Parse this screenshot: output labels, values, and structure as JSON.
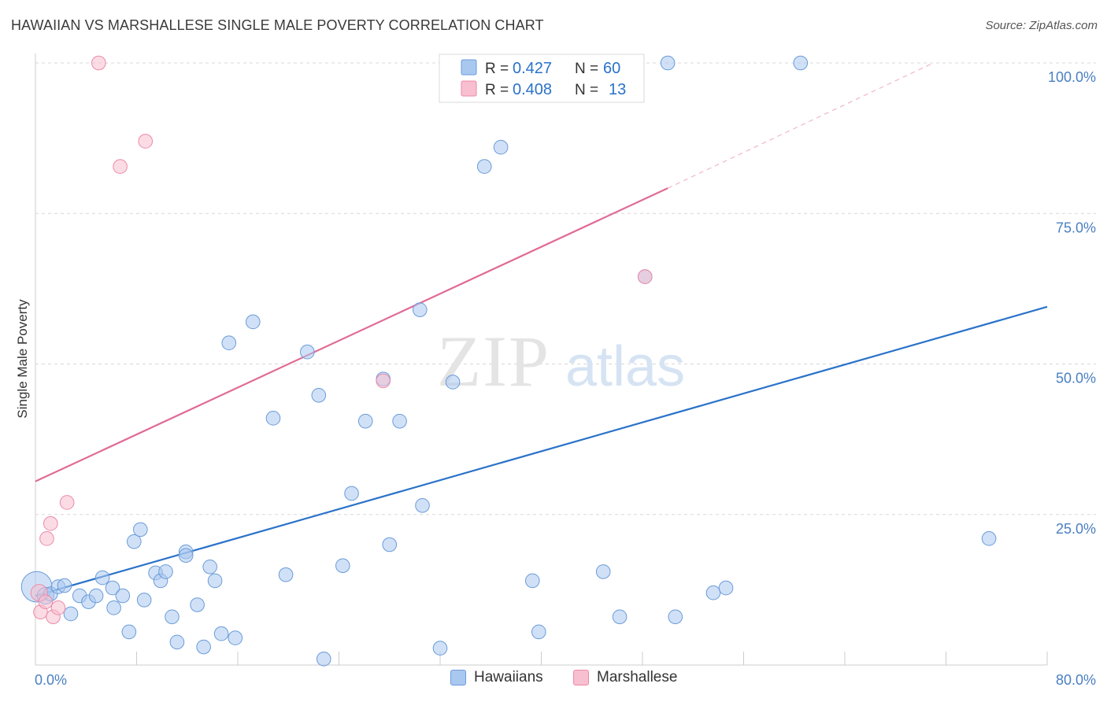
{
  "title": "HAWAIIAN VS MARSHALLESE SINGLE MALE POVERTY CORRELATION CHART",
  "source": "Source: ZipAtlas.com",
  "colors": {
    "blue_fill": "#a9c8f0",
    "blue_stroke": "#6b9bd8",
    "blue_line": "#2a72c9",
    "pink_fill": "#f8bfd0",
    "pink_stroke": "#ec8aa8",
    "pink_line": "#e06b96",
    "axis_label": "#4a7fc1",
    "grid": "#d8d8d8"
  },
  "legend": {
    "rows": [
      {
        "r_label": "R = ",
        "r_value": "0.427",
        "n_label": "N = ",
        "n_value": "60"
      },
      {
        "r_label": "R = ",
        "r_value": "0.408",
        "n_label": "N = ",
        "n_value": "13"
      }
    ]
  },
  "watermark": {
    "zip": "ZIP",
    "atlas": "atlas"
  },
  "chart_data": {
    "type": "scatter",
    "title": "HAWAIIAN VS MARSHALLESE SINGLE MALE POVERTY CORRELATION CHART",
    "xlabel": "",
    "ylabel": "Single Male Poverty",
    "xlim": [
      0,
      80
    ],
    "ylim": [
      0,
      105
    ],
    "x_tick_labels": [
      "0.0%",
      "80.0%"
    ],
    "y_ticks": [
      25,
      50,
      75,
      100
    ],
    "y_tick_labels": [
      "25.0%",
      "50.0%",
      "75.0%",
      "100.0%"
    ],
    "grid": true,
    "legend_position": "bottom",
    "series": [
      {
        "name": "Hawaiians",
        "r": 0.427,
        "n": 60,
        "trend": {
          "x0": 0,
          "y0": 11.5,
          "x1": 80,
          "y1": 59.5
        },
        "points": [
          [
            0.1,
            13.0,
            22
          ],
          [
            0.8,
            11.5,
            12
          ],
          [
            1.2,
            11.8,
            10
          ],
          [
            1.8,
            13.0,
            10
          ],
          [
            2.3,
            13.2,
            10
          ],
          [
            2.8,
            8.5,
            10
          ],
          [
            3.5,
            11.5,
            10
          ],
          [
            4.2,
            10.5,
            10
          ],
          [
            4.8,
            11.5,
            10
          ],
          [
            5.3,
            14.5,
            10
          ],
          [
            6.1,
            12.8,
            10
          ],
          [
            6.2,
            9.5,
            10
          ],
          [
            6.9,
            11.5,
            10
          ],
          [
            7.4,
            5.5,
            10
          ],
          [
            7.8,
            20.5,
            10
          ],
          [
            8.3,
            22.5,
            10
          ],
          [
            8.6,
            10.8,
            10
          ],
          [
            9.5,
            15.3,
            10
          ],
          [
            9.9,
            14.0,
            10
          ],
          [
            10.3,
            15.5,
            10
          ],
          [
            10.8,
            8.0,
            10
          ],
          [
            11.2,
            3.8,
            10
          ],
          [
            11.9,
            18.8,
            10
          ],
          [
            11.9,
            18.2,
            10
          ],
          [
            12.8,
            10.0,
            10
          ],
          [
            13.3,
            3.0,
            10
          ],
          [
            13.8,
            16.3,
            10
          ],
          [
            14.2,
            14.0,
            10
          ],
          [
            14.7,
            5.2,
            10
          ],
          [
            15.3,
            53.5,
            10
          ],
          [
            15.8,
            4.5,
            10
          ],
          [
            17.2,
            57.0,
            10
          ],
          [
            18.8,
            41.0,
            10
          ],
          [
            19.8,
            15.0,
            10
          ],
          [
            21.5,
            52.0,
            10
          ],
          [
            22.4,
            44.8,
            10
          ],
          [
            22.8,
            1.0,
            10
          ],
          [
            24.3,
            16.5,
            10
          ],
          [
            25.0,
            28.5,
            10
          ],
          [
            26.1,
            40.5,
            10
          ],
          [
            27.5,
            47.5,
            10
          ],
          [
            28.0,
            20.0,
            10
          ],
          [
            28.8,
            40.5,
            10
          ],
          [
            30.4,
            59.0,
            10
          ],
          [
            30.6,
            26.5,
            10
          ],
          [
            32.0,
            2.8,
            10
          ],
          [
            35.5,
            82.8,
            10
          ],
          [
            36.8,
            86.0,
            10
          ],
          [
            39.3,
            14.0,
            10
          ],
          [
            39.8,
            5.5,
            10
          ],
          [
            44.9,
            15.5,
            10
          ],
          [
            46.2,
            8.0,
            10
          ],
          [
            48.2,
            64.5,
            10
          ],
          [
            50.6,
            8.0,
            10
          ],
          [
            50.0,
            100.0,
            10
          ],
          [
            53.6,
            12.0,
            10
          ],
          [
            54.6,
            12.8,
            10
          ],
          [
            60.5,
            100.0,
            10
          ],
          [
            75.4,
            21.0,
            10
          ],
          [
            33.0,
            47.0,
            10
          ]
        ]
      },
      {
        "name": "Marshallese",
        "r": 0.408,
        "n": 13,
        "trend": {
          "x0": 0,
          "y0": 30.5,
          "x1": 50,
          "y1": 79.2,
          "dash_x1": 71,
          "dash_y1": 100
        },
        "points": [
          [
            0.3,
            12.0,
            12
          ],
          [
            0.4,
            8.8,
            10
          ],
          [
            0.8,
            10.5,
            10
          ],
          [
            0.9,
            21.0,
            10
          ],
          [
            1.2,
            23.5,
            10
          ],
          [
            1.4,
            8.0,
            10
          ],
          [
            1.8,
            9.5,
            10
          ],
          [
            2.5,
            27.0,
            10
          ],
          [
            5.0,
            100.0,
            10
          ],
          [
            6.7,
            82.8,
            10
          ],
          [
            8.7,
            87.0,
            10
          ],
          [
            27.5,
            47.2,
            10
          ],
          [
            48.2,
            64.5,
            10
          ]
        ]
      }
    ]
  }
}
